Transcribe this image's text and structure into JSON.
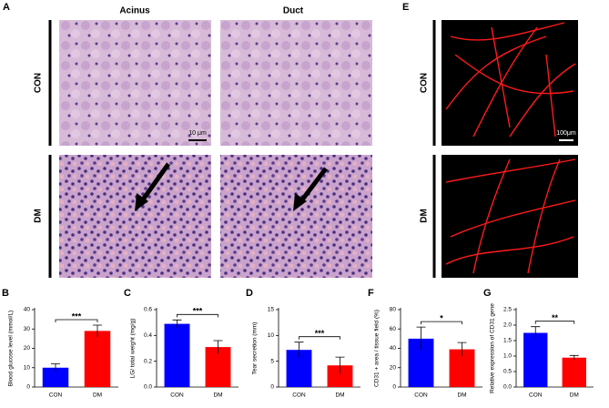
{
  "figure": {
    "panels": {
      "A": "A",
      "B": "B",
      "C": "C",
      "D": "D",
      "E": "E",
      "F": "F",
      "G": "G"
    },
    "columns": [
      "Acinus",
      "Duct"
    ],
    "rows_a": [
      "CON",
      "DM"
    ],
    "rows_e": [
      "CON",
      "DM"
    ],
    "scale_a": "10 μm",
    "scale_e": "100μm"
  },
  "chart_data": [
    {
      "type": "bar",
      "panel": "B",
      "ylabel": "Blood glucose level (mmol/L)",
      "categories": [
        "CON",
        "DM"
      ],
      "values": [
        10,
        29
      ],
      "errors": [
        2,
        3
      ],
      "colors": [
        "#0000ff",
        "#ff0000"
      ],
      "ylim": [
        0,
        40
      ],
      "yticks": [
        0,
        10,
        20,
        30,
        40
      ],
      "significance": "***"
    },
    {
      "type": "bar",
      "panel": "C",
      "ylabel": "LG/ total weight (mg/g)",
      "categories": [
        "CON",
        "DM"
      ],
      "values": [
        0.49,
        0.31
      ],
      "errors": [
        0.03,
        0.05
      ],
      "colors": [
        "#0000ff",
        "#ff0000"
      ],
      "ylim": [
        0,
        0.6
      ],
      "yticks": [
        {
          "value": 0,
          "label": "0.0"
        },
        0.2,
        0.4,
        0.6
      ],
      "significance": "***"
    },
    {
      "type": "bar",
      "panel": "D",
      "ylabel": "Tear secretion (mm)",
      "categories": [
        "CON",
        "DM"
      ],
      "values": [
        7.2,
        4.2
      ],
      "errors": [
        1.5,
        1.6
      ],
      "colors": [
        "#0000ff",
        "#ff0000"
      ],
      "ylim": [
        0,
        15
      ],
      "yticks": [
        0,
        5,
        10,
        15
      ],
      "significance": "***"
    },
    {
      "type": "bar",
      "panel": "F",
      "ylabel": "CD31 + area / tissue field (%)",
      "categories": [
        "CON",
        "DM"
      ],
      "values": [
        50,
        39
      ],
      "errors": [
        12,
        7
      ],
      "colors": [
        "#0000ff",
        "#ff0000"
      ],
      "ylim": [
        0,
        80
      ],
      "yticks": [
        0,
        20,
        40,
        60,
        80
      ],
      "significance": "*"
    },
    {
      "type": "bar",
      "panel": "G",
      "ylabel": "Relative expression of CD31 gene",
      "categories": [
        "CON",
        "DM"
      ],
      "values": [
        1.75,
        0.95
      ],
      "errors": [
        0.2,
        0.07
      ],
      "colors": [
        "#0000ff",
        "#ff0000"
      ],
      "ylim": [
        0,
        2.5
      ],
      "yticks": [
        {
          "value": 0,
          "label": "0.0"
        },
        0.5,
        {
          "value": 1,
          "label": "1.0"
        },
        1.5,
        {
          "value": 2,
          "label": "2.0"
        },
        2.5
      ],
      "significance": "**"
    }
  ]
}
